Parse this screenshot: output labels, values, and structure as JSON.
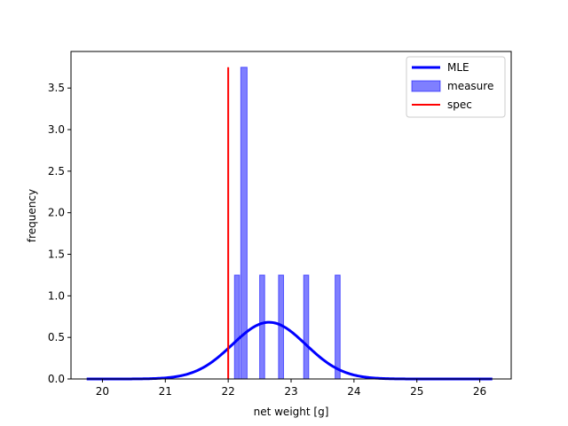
{
  "chart_data": {
    "type": "bar",
    "title": "",
    "xlabel": "net weight [g]",
    "ylabel": "frequency",
    "xlim": [
      19.5,
      26.5
    ],
    "ylim": [
      0,
      3.94
    ],
    "xticks": [
      20,
      21,
      22,
      23,
      24,
      25,
      26
    ],
    "yticks": [
      0.0,
      0.5,
      1.0,
      1.5,
      2.0,
      2.5,
      3.0,
      3.5
    ],
    "grid": false,
    "legend_placement": "top-right",
    "histogram": {
      "name": "measure",
      "color": "#0000ff",
      "bin_width": 0.08,
      "bins": [
        {
          "x0": 22.1,
          "x1": 22.18,
          "value": 1.25
        },
        {
          "x0": 22.2,
          "x1": 22.3,
          "value": 3.75
        },
        {
          "x0": 22.5,
          "x1": 22.58,
          "value": 1.25
        },
        {
          "x0": 22.8,
          "x1": 22.88,
          "value": 1.25
        },
        {
          "x0": 23.2,
          "x1": 23.28,
          "value": 1.25
        },
        {
          "x0": 23.7,
          "x1": 23.78,
          "value": 1.25
        }
      ]
    },
    "mle_curve": {
      "name": "MLE",
      "color": "#0000ff",
      "distribution": "normal",
      "mean": 22.65,
      "std": 0.585,
      "x_range": [
        19.75,
        26.2
      ]
    },
    "spec_line": {
      "name": "spec",
      "color": "#ff0000",
      "x": 22.0,
      "y_range": [
        0,
        3.75
      ]
    },
    "legend": [
      "MLE",
      "measure",
      "spec"
    ]
  }
}
